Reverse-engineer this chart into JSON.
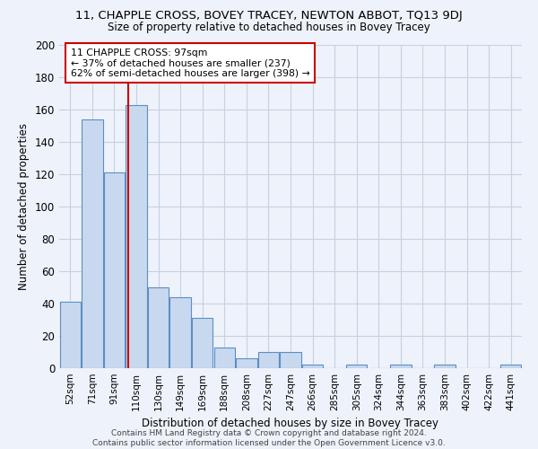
{
  "title": "11, CHAPPLE CROSS, BOVEY TRACEY, NEWTON ABBOT, TQ13 9DJ",
  "subtitle": "Size of property relative to detached houses in Bovey Tracey",
  "xlabel": "Distribution of detached houses by size in Bovey Tracey",
  "ylabel": "Number of detached properties",
  "categories": [
    "52sqm",
    "71sqm",
    "91sqm",
    "110sqm",
    "130sqm",
    "149sqm",
    "169sqm",
    "188sqm",
    "208sqm",
    "227sqm",
    "247sqm",
    "266sqm",
    "285sqm",
    "305sqm",
    "324sqm",
    "344sqm",
    "363sqm",
    "383sqm",
    "402sqm",
    "422sqm",
    "441sqm"
  ],
  "values": [
    41,
    154,
    121,
    163,
    50,
    44,
    31,
    13,
    6,
    10,
    10,
    2,
    0,
    2,
    0,
    2,
    0,
    2,
    0,
    0,
    2
  ],
  "bar_color": "#c8d9ef",
  "bar_edge_color": "#5b8ec4",
  "property_line_x": 2.65,
  "annotation_text": "11 CHAPPLE CROSS: 97sqm\n← 37% of detached houses are smaller (237)\n62% of semi-detached houses are larger (398) →",
  "annotation_box_color": "#ffffff",
  "annotation_box_edge": "#cc0000",
  "vline_color": "#cc0000",
  "ylim": [
    0,
    200
  ],
  "yticks": [
    0,
    20,
    40,
    60,
    80,
    100,
    120,
    140,
    160,
    180,
    200
  ],
  "footer": "Contains HM Land Registry data © Crown copyright and database right 2024.\nContains public sector information licensed under the Open Government Licence v3.0.",
  "background_color": "#eef2fa",
  "grid_color": "#c8d0e0"
}
